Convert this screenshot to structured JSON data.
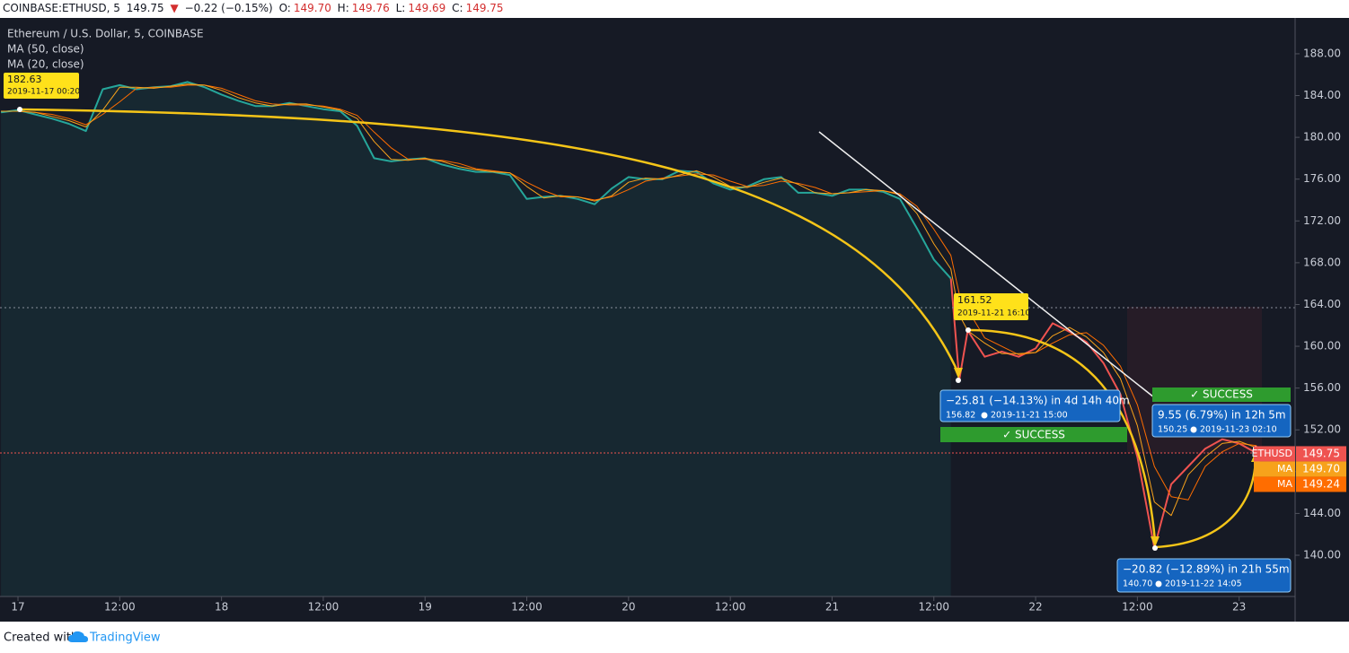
{
  "header": {
    "symbol": "COINBASE:ETHUSD, 5",
    "last": "149.75",
    "arrow": "▼",
    "change": "−0.22 (−0.15%)",
    "ohlc": [
      {
        "label": "O:",
        "value": "149.70"
      },
      {
        "label": "H:",
        "value": "149.76"
      },
      {
        "label": "L:",
        "value": "149.69"
      },
      {
        "label": "C:",
        "value": "149.75"
      }
    ]
  },
  "chart_data": {
    "type": "line",
    "title": "Ethereum / U.S. Dollar, 5, COINBASE",
    "x": [
      -2,
      0,
      2,
      4,
      6,
      8,
      10,
      12,
      14,
      16,
      18,
      20,
      22,
      24,
      26,
      28,
      30,
      32,
      34,
      36,
      38,
      40,
      42,
      44,
      46,
      48,
      50,
      52,
      54,
      56,
      58,
      60,
      62,
      64,
      66,
      68,
      70,
      72,
      74,
      76,
      78,
      80,
      82,
      84,
      86,
      88,
      90,
      92,
      94,
      96,
      98,
      100,
      102,
      104,
      106,
      108,
      110,
      111,
      112,
      114,
      116,
      118,
      120,
      122,
      124,
      126,
      128,
      130,
      132,
      134,
      136,
      138,
      140,
      142,
      144,
      146,
      147
    ],
    "series": [
      {
        "color": "#26a69a",
        "area": true,
        "values": [
          182.4,
          182.6,
          182.2,
          181.8,
          181.3,
          180.6,
          184.6,
          185.0,
          184.6,
          184.8,
          184.9,
          185.3,
          184.8,
          184.1,
          183.5,
          183.0,
          183.0,
          183.3,
          183.0,
          182.7,
          182.5,
          181.1,
          178.0,
          177.7,
          177.9,
          178.0,
          177.4,
          177.0,
          176.7,
          176.7,
          176.4,
          174.1,
          174.3,
          174.4,
          174.1,
          173.6,
          175.1,
          176.2,
          176.0,
          176.0,
          176.8,
          176.7,
          175.6,
          175.0,
          175.3,
          176.0,
          176.2,
          174.7,
          174.7,
          174.4,
          175.0,
          175.0,
          174.8,
          174.1,
          171.3,
          168.3,
          166.5,
          null,
          null,
          null,
          null,
          null,
          null,
          null,
          null,
          null,
          null,
          null,
          null,
          null,
          null,
          null,
          null,
          null,
          null,
          null,
          null
        ]
      },
      {
        "color": "#ef5350",
        "area": false,
        "values": [
          null,
          null,
          null,
          null,
          null,
          null,
          null,
          null,
          null,
          null,
          null,
          null,
          null,
          null,
          null,
          null,
          null,
          null,
          null,
          null,
          null,
          null,
          null,
          null,
          null,
          null,
          null,
          null,
          null,
          null,
          null,
          null,
          null,
          null,
          null,
          null,
          null,
          null,
          null,
          null,
          null,
          null,
          null,
          null,
          null,
          null,
          null,
          null,
          null,
          null,
          null,
          null,
          null,
          null,
          null,
          null,
          166.5,
          156.8,
          161.5,
          159.0,
          159.5,
          159.0,
          159.8,
          162.2,
          161.4,
          160.4,
          158.4,
          155.4,
          149.4,
          140.7,
          146.8,
          148.5,
          150.2,
          151.1,
          150.7,
          149.8,
          149.75
        ]
      },
      {
        "name": "MA (50, close)",
        "color": "#ff6d00",
        "area": false,
        "values": [
          182.5,
          182.5,
          182.4,
          182.2,
          181.8,
          181.2,
          182.2,
          183.4,
          184.7,
          184.8,
          184.8,
          185.0,
          185.0,
          184.7,
          184.1,
          183.5,
          183.2,
          183.1,
          183.1,
          183.0,
          182.7,
          182.1,
          180.5,
          179.0,
          177.9,
          177.9,
          177.8,
          177.5,
          177.0,
          176.8,
          176.6,
          175.7,
          174.9,
          174.3,
          174.3,
          174.0,
          174.3,
          175.0,
          175.8,
          176.1,
          176.3,
          176.5,
          176.4,
          175.8,
          175.3,
          175.4,
          175.8,
          175.6,
          175.2,
          174.6,
          174.7,
          174.8,
          174.9,
          174.6,
          173.4,
          171.2,
          168.7,
          165.0,
          163.5,
          160.8,
          160.0,
          159.2,
          159.4,
          160.3,
          161.1,
          161.3,
          160.1,
          158.1,
          154.4,
          148.5,
          145.6,
          145.3,
          148.5,
          149.9,
          150.7,
          150.5,
          149.24
        ]
      },
      {
        "name": "MA (20, close)",
        "color": "#f7a21b",
        "area": false,
        "values": [
          182.5,
          182.5,
          182.4,
          182.0,
          181.6,
          181.0,
          182.6,
          184.8,
          184.8,
          184.7,
          184.9,
          185.1,
          185.0,
          184.5,
          183.8,
          183.3,
          183.0,
          183.2,
          183.2,
          182.9,
          182.6,
          181.8,
          179.6,
          177.9,
          177.8,
          178.0,
          177.7,
          177.2,
          176.9,
          176.7,
          176.6,
          175.3,
          174.2,
          174.4,
          174.3,
          173.9,
          174.4,
          175.7,
          176.1,
          176.0,
          176.4,
          176.8,
          176.2,
          175.3,
          175.2,
          175.7,
          176.1,
          175.5,
          174.7,
          174.6,
          174.7,
          175.0,
          174.9,
          174.5,
          172.7,
          169.8,
          167.4,
          163.0,
          161.5,
          160.3,
          159.3,
          159.3,
          159.4,
          161.0,
          161.8,
          160.9,
          159.4,
          156.9,
          152.4,
          145.1,
          143.8,
          147.7,
          149.4,
          150.7,
          150.9,
          150.3,
          149.7
        ]
      }
    ],
    "xlim": [
      -2.12,
      150.6
    ],
    "xticks": [
      {
        "value": 0,
        "label": "17"
      },
      {
        "value": 12,
        "label": "12:00"
      },
      {
        "value": 24,
        "label": "18"
      },
      {
        "value": 36,
        "label": "12:00"
      },
      {
        "value": 48,
        "label": "19"
      },
      {
        "value": 60,
        "label": "12:00"
      },
      {
        "value": 72,
        "label": "20"
      },
      {
        "value": 84,
        "label": "12:00"
      },
      {
        "value": 96,
        "label": "21"
      },
      {
        "value": 108,
        "label": "12:00"
      },
      {
        "value": 120,
        "label": "22"
      },
      {
        "value": 132,
        "label": "12:00"
      },
      {
        "value": 144,
        "label": "23"
      }
    ],
    "ylim": [
      136.05,
      191.43
    ],
    "yticks": [
      {
        "value": 140,
        "label": "140.00"
      },
      {
        "value": 144,
        "label": "144.00"
      },
      {
        "value": 148,
        "label": "148.00"
      },
      {
        "value": 152,
        "label": "152.00"
      },
      {
        "value": 156,
        "label": "156.00"
      },
      {
        "value": 160,
        "label": "160.00"
      },
      {
        "value": 164,
        "label": "164.00"
      },
      {
        "value": 168,
        "label": "168.00"
      },
      {
        "value": 172,
        "label": "172.00"
      },
      {
        "value": 176,
        "label": "176.00"
      },
      {
        "value": 180,
        "label": "180.00"
      },
      {
        "value": 184,
        "label": "184.00"
      },
      {
        "value": 188,
        "label": "188.00"
      }
    ],
    "grid": false,
    "price_tags": [
      {
        "label": "ETHUSD",
        "value": 149.75,
        "value_label": "149.75",
        "color": "#ef5350"
      },
      {
        "label": "MA",
        "value": 149.7,
        "value_label": "149.70",
        "color": "#f7a21b"
      },
      {
        "label": "MA",
        "value": 149.24,
        "value_label": "149.24",
        "color": "#ff6d00"
      }
    ],
    "annotations": {
      "start_point": {
        "price": "182.63",
        "date": "2019-11-17 00:20"
      },
      "peak_point": {
        "price": "161.52",
        "date": "2019-11-21 16:10"
      },
      "measures": [
        {
          "change": "−25.81 (−14.13%) in 4d 14h 40m",
          "price": "156.82",
          "date": "2019-11-21  15:00",
          "status": "✓ SUCCESS"
        },
        {
          "change": "9.55 (6.79%) in 12h 5m",
          "price": "150.25",
          "date": "2019-11-23  02:10",
          "status": "✓ SUCCESS"
        },
        {
          "change": "−20.82 (−12.89%) in 21h 55m",
          "price": "140.70",
          "date": "2019-11-22  14:05"
        }
      ]
    }
  },
  "footer": {
    "prefix": "Created with",
    "brand": "TradingView"
  }
}
